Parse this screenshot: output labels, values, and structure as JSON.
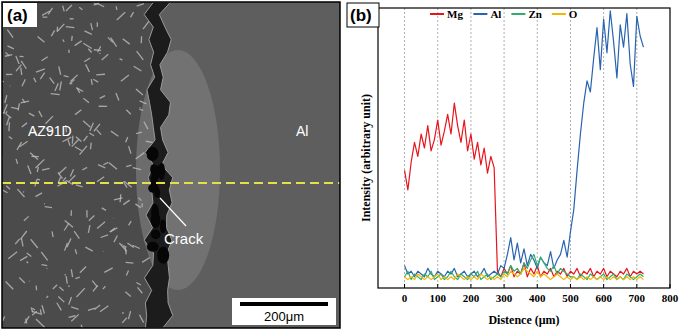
{
  "panels": {
    "a": {
      "letter": "(a)",
      "labels": [
        "AZ91D",
        "Al"
      ],
      "annotation": "Crack",
      "scale_bar": "200μm"
    },
    "b": {
      "letter": "(b)"
    }
  },
  "chart_data": {
    "type": "line",
    "x_label": "Distence (μm)",
    "y_label": "Intensity (arbitrary unit)",
    "x": [
      0,
      10,
      20,
      30,
      40,
      50,
      60,
      70,
      80,
      90,
      100,
      110,
      120,
      130,
      140,
      150,
      160,
      170,
      180,
      190,
      200,
      210,
      220,
      230,
      240,
      250,
      260,
      270,
      280,
      290,
      300,
      310,
      320,
      330,
      340,
      350,
      360,
      370,
      380,
      390,
      400,
      410,
      420,
      430,
      440,
      450,
      460,
      470,
      480,
      490,
      500,
      510,
      520,
      530,
      540,
      550,
      560,
      570,
      580,
      590,
      600,
      610,
      620,
      630,
      640,
      650,
      660,
      670,
      680,
      690,
      700,
      710,
      720
    ],
    "series": [
      {
        "name": "Mg",
        "color": "#e8141c",
        "values": [
          0.42,
          0.35,
          0.45,
          0.52,
          0.47,
          0.55,
          0.5,
          0.58,
          0.49,
          0.53,
          0.6,
          0.51,
          0.56,
          0.62,
          0.55,
          0.66,
          0.58,
          0.52,
          0.6,
          0.49,
          0.55,
          0.46,
          0.52,
          0.44,
          0.5,
          0.41,
          0.47,
          0.43,
          0.06,
          0.04,
          0.07,
          0.05,
          0.08,
          0.04,
          0.06,
          0.05,
          0.09,
          0.04,
          0.07,
          0.05,
          0.08,
          0.04,
          0.06,
          0.05,
          0.07,
          0.04,
          0.06,
          0.05,
          0.07,
          0.04,
          0.06,
          0.05,
          0.07,
          0.04,
          0.06,
          0.05,
          0.07,
          0.04,
          0.06,
          0.05,
          0.07,
          0.04,
          0.06,
          0.05,
          0.04,
          0.06,
          0.05,
          0.07,
          0.04,
          0.06,
          0.05,
          0.06,
          0.05
        ]
      },
      {
        "name": "Al",
        "color": "#2a63b0",
        "values": [
          0.08,
          0.05,
          0.06,
          0.04,
          0.06,
          0.05,
          0.04,
          0.07,
          0.05,
          0.04,
          0.06,
          0.05,
          0.04,
          0.06,
          0.05,
          0.07,
          0.04,
          0.05,
          0.06,
          0.04,
          0.05,
          0.06,
          0.04,
          0.05,
          0.07,
          0.04,
          0.05,
          0.06,
          0.05,
          0.08,
          0.07,
          0.12,
          0.18,
          0.1,
          0.16,
          0.09,
          0.14,
          0.08,
          0.12,
          0.1,
          0.07,
          0.11,
          0.09,
          0.08,
          0.13,
          0.07,
          0.1,
          0.12,
          0.17,
          0.11,
          0.2,
          0.28,
          0.42,
          0.55,
          0.66,
          0.74,
          0.7,
          0.82,
          0.93,
          0.78,
          0.96,
          0.84,
          0.99,
          0.88,
          0.75,
          0.94,
          0.86,
          0.98,
          0.8,
          0.72,
          0.97,
          0.9,
          0.86
        ]
      },
      {
        "name": "Zn",
        "color": "#2fae6e",
        "values": [
          0.04,
          0.06,
          0.03,
          0.05,
          0.04,
          0.03,
          0.05,
          0.04,
          0.06,
          0.03,
          0.04,
          0.05,
          0.03,
          0.04,
          0.06,
          0.04,
          0.03,
          0.05,
          0.04,
          0.03,
          0.05,
          0.04,
          0.06,
          0.03,
          0.04,
          0.05,
          0.03,
          0.04,
          0.05,
          0.04,
          0.06,
          0.05,
          0.08,
          0.06,
          0.07,
          0.05,
          0.09,
          0.07,
          0.1,
          0.12,
          0.08,
          0.11,
          0.09,
          0.07,
          0.06,
          0.08,
          0.05,
          0.07,
          0.06,
          0.05,
          0.04,
          0.04,
          0.03,
          0.05,
          0.04,
          0.03,
          0.05,
          0.04,
          0.03,
          0.04,
          0.05,
          0.03,
          0.04,
          0.05,
          0.03,
          0.04,
          0.03,
          0.05,
          0.04,
          0.03,
          0.04,
          0.05,
          0.04
        ]
      },
      {
        "name": "O",
        "color": "#f2b705",
        "values": [
          0.04,
          0.03,
          0.04,
          0.03,
          0.05,
          0.04,
          0.03,
          0.04,
          0.03,
          0.04,
          0.05,
          0.03,
          0.04,
          0.03,
          0.04,
          0.03,
          0.05,
          0.04,
          0.03,
          0.04,
          0.03,
          0.04,
          0.03,
          0.05,
          0.04,
          0.03,
          0.04,
          0.03,
          0.04,
          0.03,
          0.05,
          0.04,
          0.06,
          0.05,
          0.04,
          0.05,
          0.07,
          0.06,
          0.05,
          0.04,
          0.06,
          0.04,
          0.05,
          0.04,
          0.03,
          0.04,
          0.05,
          0.04,
          0.03,
          0.04,
          0.03,
          0.04,
          0.03,
          0.04,
          0.03,
          0.04,
          0.03,
          0.04,
          0.03,
          0.04,
          0.03,
          0.04,
          0.03,
          0.04,
          0.03,
          0.04,
          0.03,
          0.04,
          0.03,
          0.04,
          0.03,
          0.04,
          0.03
        ]
      }
    ],
    "xlim": [
      -80,
      800
    ],
    "xticks": [
      0,
      100,
      200,
      300,
      400,
      500,
      600,
      700,
      800
    ],
    "ylim": [
      0,
      1
    ],
    "tick_labels": "x",
    "grid": true,
    "legend": "top"
  }
}
